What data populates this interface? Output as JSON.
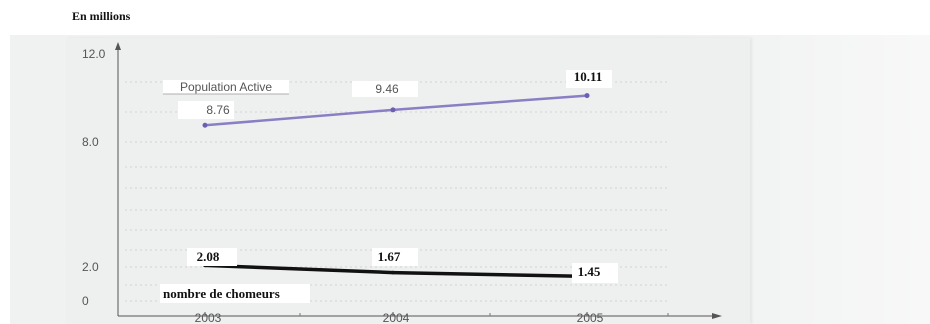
{
  "unit_label": "En millions",
  "chart_data": {
    "type": "line",
    "categories": [
      "2003",
      "2004",
      "2005"
    ],
    "y_ticks": [
      "12.0",
      "8.0",
      "2.0",
      "0"
    ],
    "ylim": [
      0,
      12
    ],
    "grid": true,
    "series": [
      {
        "name": "Population Active",
        "values": [
          8.76,
          9.46,
          10.11
        ],
        "labels": [
          "8.76",
          "9.46",
          "10.11"
        ],
        "color": "#8a7fc4"
      },
      {
        "name": "nombre de chomeurs",
        "values": [
          2.08,
          1.67,
          1.45
        ],
        "labels": [
          "2.08",
          "1.67",
          "1.45"
        ],
        "color": "#111111"
      }
    ]
  }
}
